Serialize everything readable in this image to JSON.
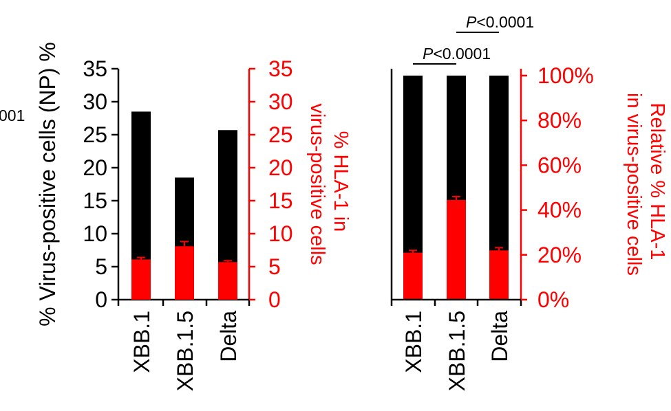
{
  "clipped_text": "001",
  "chart_data": [
    {
      "type": "bar",
      "categories": [
        "XBB.1",
        "XBB.1.5",
        "Delta"
      ],
      "ylabel": "% Virus-positive cells (NP) %",
      "ylabel2": "% HLA-1 in virus-positive cells",
      "ylabel2_lines": [
        "% HLA-1 in",
        "virus-positive cells"
      ],
      "ylim": [
        0,
        35
      ],
      "yticks": [
        "0",
        "5",
        "10",
        "15",
        "20",
        "25",
        "30",
        "35"
      ],
      "y2lim": [
        0,
        35
      ],
      "y2ticks": [
        "0",
        "5",
        "10",
        "15",
        "20",
        "25",
        "30",
        "35"
      ],
      "series": [
        {
          "values": [
            28.5,
            18.5,
            25.7
          ],
          "color": "#000000"
        },
        {
          "values": [
            6.1,
            8.1,
            5.7
          ],
          "errors": [
            0.3,
            0.7,
            0.2
          ],
          "color": "#ff0000"
        }
      ],
      "grid": false,
      "legend": "none"
    },
    {
      "type": "bar",
      "categories": [
        "XBB.1",
        "XBB.1.5",
        "Delta"
      ],
      "ylabel": "Relative % HLA-1 in virus-positive cells",
      "ylabel_lines": [
        "Relative % HLA-1",
        "in virus-positive cells"
      ],
      "ylim": [
        0,
        100
      ],
      "yticks": [
        "0%",
        "20%",
        "40%",
        "60%",
        "80%",
        "100%"
      ],
      "series": [
        {
          "values": [
            100,
            100,
            100
          ],
          "color": "#000000"
        },
        {
          "values": [
            21,
            44.5,
            22
          ],
          "errors": [
            1.0,
            1.5,
            1.2
          ],
          "color": "#ff0000"
        }
      ],
      "annotations": [
        {
          "from": "XBB.1",
          "to": "XBB.1.5",
          "p_symbol": "P",
          "p_rest": "<0.0001"
        },
        {
          "from": "XBB.1.5",
          "to": "Delta",
          "p_symbol": "P",
          "p_rest": "<0.0001"
        }
      ],
      "grid": false,
      "legend": "none"
    }
  ]
}
